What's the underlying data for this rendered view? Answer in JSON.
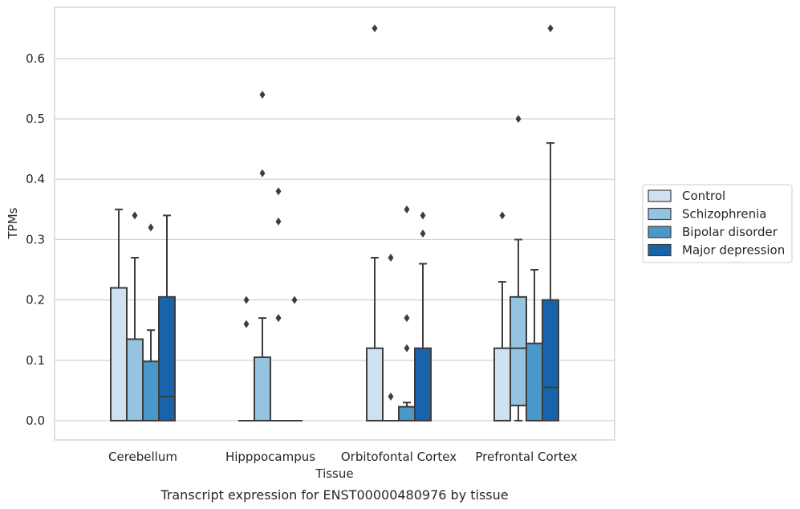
{
  "chart_data": {
    "type": "boxplot",
    "title": "",
    "caption": "Transcript expression for ENST00000480976 by tissue",
    "xlabel": "Tissue",
    "ylabel": "TPMs",
    "ylim": [
      -0.032,
      0.685
    ],
    "yticks": [
      "0.0",
      "0.1",
      "0.2",
      "0.3",
      "0.4",
      "0.5",
      "0.6"
    ],
    "grid": "horizontal",
    "legend_position": "right",
    "categories": [
      "Cerebellum",
      "Hipppocampus",
      "Orbitofontal Cortex",
      "Prefrontal Cortex"
    ],
    "series": [
      {
        "name": "Control",
        "color": "#d0e1f2",
        "boxes": [
          {
            "q1": 0.0,
            "median": 0.0,
            "q3": 0.22,
            "whislo": 0.0,
            "whishi": 0.35,
            "fliers": []
          },
          {
            "q1": 0.0,
            "median": 0.0,
            "q3": 0.0,
            "whislo": 0.0,
            "whishi": 0.0,
            "fliers": [
              0.2,
              0.16
            ]
          },
          {
            "q1": 0.0,
            "median": 0.0,
            "q3": 0.12,
            "whislo": 0.0,
            "whishi": 0.27,
            "fliers": [
              0.65
            ]
          },
          {
            "q1": 0.0,
            "median": 0.0,
            "q3": 0.12,
            "whislo": 0.0,
            "whishi": 0.23,
            "fliers": [
              0.34
            ]
          }
        ]
      },
      {
        "name": "Schizophrenia",
        "color": "#94c4df",
        "boxes": [
          {
            "q1": 0.0,
            "median": 0.0,
            "q3": 0.135,
            "whislo": 0.0,
            "whishi": 0.27,
            "fliers": [
              0.34
            ]
          },
          {
            "q1": 0.0,
            "median": 0.0,
            "q3": 0.105,
            "whislo": 0.0,
            "whishi": 0.17,
            "fliers": [
              0.54,
              0.41
            ]
          },
          {
            "q1": 0.0,
            "median": 0.0,
            "q3": 0.0,
            "whislo": 0.0,
            "whishi": 0.0,
            "fliers": [
              0.27,
              0.04
            ]
          },
          {
            "q1": 0.025,
            "median": 0.12,
            "q3": 0.205,
            "whislo": 0.0,
            "whishi": 0.3,
            "fliers": [
              0.5
            ]
          }
        ]
      },
      {
        "name": "Bipolar disorder",
        "color": "#4a98c9",
        "boxes": [
          {
            "q1": 0.0,
            "median": 0.0,
            "q3": 0.098,
            "whislo": 0.0,
            "whishi": 0.15,
            "fliers": [
              0.32
            ]
          },
          {
            "q1": 0.0,
            "median": 0.0,
            "q3": 0.0,
            "whislo": 0.0,
            "whishi": 0.0,
            "fliers": [
              0.38,
              0.33,
              0.17
            ]
          },
          {
            "q1": 0.0,
            "median": 0.0,
            "q3": 0.023,
            "whislo": 0.0,
            "whishi": 0.03,
            "fliers": [
              0.35,
              0.17,
              0.12
            ]
          },
          {
            "q1": 0.0,
            "median": 0.0,
            "q3": 0.128,
            "whislo": 0.0,
            "whishi": 0.25,
            "fliers": []
          }
        ]
      },
      {
        "name": "Major depression",
        "color": "#1764ab",
        "boxes": [
          {
            "q1": 0.0,
            "median": 0.04,
            "q3": 0.205,
            "whislo": 0.0,
            "whishi": 0.34,
            "fliers": []
          },
          {
            "q1": 0.0,
            "median": 0.0,
            "q3": 0.0,
            "whislo": 0.0,
            "whishi": 0.0,
            "fliers": [
              0.2
            ]
          },
          {
            "q1": 0.0,
            "median": 0.0,
            "q3": 0.12,
            "whislo": 0.0,
            "whishi": 0.26,
            "fliers": [
              0.34,
              0.31
            ]
          },
          {
            "q1": 0.0,
            "median": 0.055,
            "q3": 0.2,
            "whislo": 0.0,
            "whishi": 0.46,
            "fliers": [
              0.65
            ]
          }
        ]
      }
    ]
  }
}
